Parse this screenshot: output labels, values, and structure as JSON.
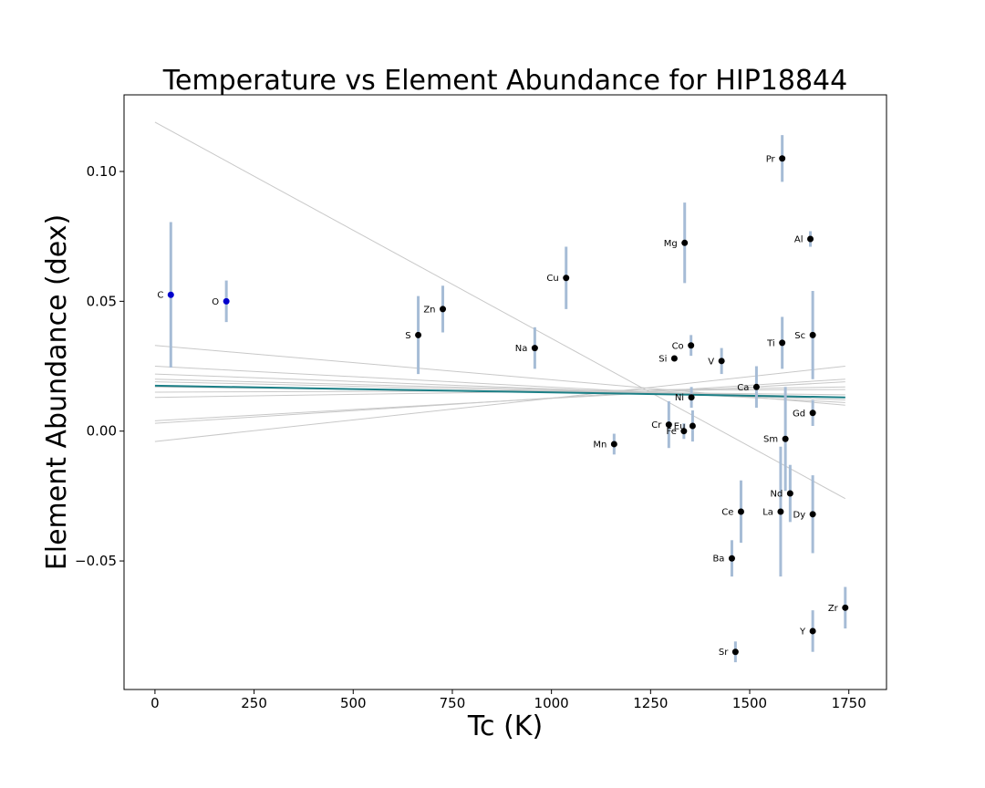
{
  "chart_data": {
    "type": "scatter",
    "title": "Temperature vs Element Abundance for HIP18844",
    "xlabel": "Tc (K)",
    "ylabel": "Element Abundance (dex)",
    "xlim": [
      -78,
      1845
    ],
    "ylim": [
      -0.0995,
      0.1295
    ],
    "xticks": [
      0,
      250,
      500,
      750,
      1000,
      1250,
      1500,
      1750
    ],
    "xtick_labels": [
      "0",
      "250",
      "500",
      "750",
      "1000",
      "1250",
      "1500",
      "1750"
    ],
    "yticks": [
      0.1,
      0.05,
      0.0,
      -0.05
    ],
    "ytick_labels": [
      "0.10",
      "0.05",
      "0.00",
      "−0.05"
    ],
    "grid": false,
    "colors": {
      "point": "#000000",
      "point_highlight": "#0000cc",
      "errorbar": "#a6bcd6",
      "fit_line": "#1b7f86",
      "sample_lines": "#c8c8c8"
    },
    "points": [
      {
        "element": "C",
        "tc": 40,
        "abundance": 0.0525,
        "err": 0.028,
        "highlight": true
      },
      {
        "element": "O",
        "tc": 180,
        "abundance": 0.05,
        "err": 0.008,
        "highlight": true
      },
      {
        "element": "S",
        "tc": 664,
        "abundance": 0.037,
        "err": 0.015
      },
      {
        "element": "Zn",
        "tc": 726,
        "abundance": 0.047,
        "err": 0.009
      },
      {
        "element": "Na",
        "tc": 958,
        "abundance": 0.032,
        "err": 0.008
      },
      {
        "element": "Cu",
        "tc": 1037,
        "abundance": 0.059,
        "err": 0.012
      },
      {
        "element": "Mn",
        "tc": 1158,
        "abundance": -0.005,
        "err": 0.004
      },
      {
        "element": "Cr",
        "tc": 1296,
        "abundance": 0.0025,
        "err": 0.009
      },
      {
        "element": "Si",
        "tc": 1310,
        "abundance": 0.028,
        "err": 0.0
      },
      {
        "element": "Fe",
        "tc": 1334,
        "abundance": 0.0,
        "err": 0.003
      },
      {
        "element": "Mg",
        "tc": 1336,
        "abundance": 0.0725,
        "err": 0.0155
      },
      {
        "element": "Co",
        "tc": 1352,
        "abundance": 0.033,
        "err": 0.004
      },
      {
        "element": "Ni",
        "tc": 1353,
        "abundance": 0.013,
        "err": 0.004
      },
      {
        "element": "Eu",
        "tc": 1356,
        "abundance": 0.002,
        "err": 0.006
      },
      {
        "element": "V",
        "tc": 1429,
        "abundance": 0.027,
        "err": 0.005
      },
      {
        "element": "Ba",
        "tc": 1455,
        "abundance": -0.049,
        "err": 0.007
      },
      {
        "element": "Sr",
        "tc": 1464,
        "abundance": -0.085,
        "err": 0.004
      },
      {
        "element": "Ce",
        "tc": 1478,
        "abundance": -0.031,
        "err": 0.012
      },
      {
        "element": "Ca",
        "tc": 1517,
        "abundance": 0.017,
        "err": 0.008
      },
      {
        "element": "La",
        "tc": 1578,
        "abundance": -0.031,
        "err": 0.025
      },
      {
        "element": "Ti",
        "tc": 1582,
        "abundance": 0.034,
        "err": 0.01
      },
      {
        "element": "Pr",
        "tc": 1582,
        "abundance": 0.105,
        "err": 0.009
      },
      {
        "element": "Sm",
        "tc": 1590,
        "abundance": -0.003,
        "err": 0.02
      },
      {
        "element": "Nd",
        "tc": 1602,
        "abundance": -0.024,
        "err": 0.011
      },
      {
        "element": "Al",
        "tc": 1653,
        "abundance": 0.074,
        "err": 0.003
      },
      {
        "element": "Y",
        "tc": 1659,
        "abundance": -0.077,
        "err": 0.008
      },
      {
        "element": "Dy",
        "tc": 1659,
        "abundance": -0.032,
        "err": 0.015
      },
      {
        "element": "Gd",
        "tc": 1659,
        "abundance": 0.007,
        "err": 0.005
      },
      {
        "element": "Sc",
        "tc": 1659,
        "abundance": 0.037,
        "err": 0.017
      },
      {
        "element": "Zr",
        "tc": 1741,
        "abundance": -0.068,
        "err": 0.008
      }
    ],
    "fit_line": {
      "x": [
        0,
        1741
      ],
      "y": [
        0.0175,
        0.013
      ]
    },
    "sample_lines": [
      {
        "x": [
          0,
          1741
        ],
        "y": [
          0.119,
          -0.026
        ]
      },
      {
        "x": [
          0,
          1741
        ],
        "y": [
          0.033,
          0.01
        ]
      },
      {
        "x": [
          0,
          1741
        ],
        "y": [
          0.025,
          0.011
        ]
      },
      {
        "x": [
          0,
          1741
        ],
        "y": [
          0.022,
          0.012
        ]
      },
      {
        "x": [
          0,
          1741
        ],
        "y": [
          0.02,
          0.013
        ]
      },
      {
        "x": [
          0,
          1741
        ],
        "y": [
          0.019,
          0.013
        ]
      },
      {
        "x": [
          0,
          1741
        ],
        "y": [
          0.017,
          0.014
        ]
      },
      {
        "x": [
          0,
          1741
        ],
        "y": [
          0.015,
          0.016
        ]
      },
      {
        "x": [
          0,
          1741
        ],
        "y": [
          0.013,
          0.017
        ]
      },
      {
        "x": [
          0,
          1741
        ],
        "y": [
          0.004,
          0.019
        ]
      },
      {
        "x": [
          0,
          1741
        ],
        "y": [
          0.003,
          0.02
        ]
      },
      {
        "x": [
          0,
          1741
        ],
        "y": [
          -0.004,
          0.025
        ]
      }
    ]
  }
}
